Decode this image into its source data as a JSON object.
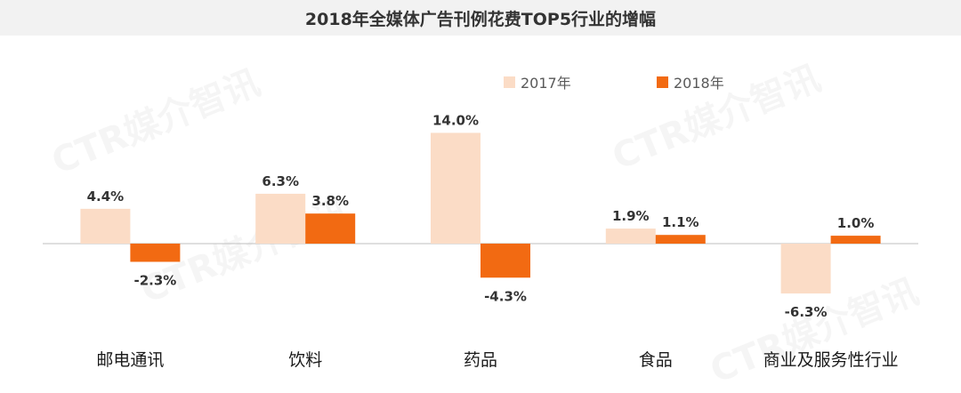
{
  "title": "2018年全媒体广告刊例花费TOP5行业的增幅",
  "watermark": "CTR媒介智讯",
  "colors": {
    "s2017": "#fbdcc6",
    "s2018": "#f26a12",
    "axis": "#bfbfbf",
    "text": "#333333"
  },
  "chart_data": {
    "type": "bar",
    "title": "2018年全媒体广告刊例花费TOP5行业的增幅",
    "xlabel": "",
    "ylabel": "",
    "categories": [
      "邮电通讯",
      "饮料",
      "药品",
      "食品",
      "商业及服务性行业"
    ],
    "series": [
      {
        "name": "2017年",
        "values": [
          4.4,
          6.3,
          14.0,
          1.9,
          -6.3
        ],
        "labels": [
          "4.4%",
          "6.3%",
          "14.0%",
          "1.9%",
          "-6.3%"
        ]
      },
      {
        "name": "2018年",
        "values": [
          -2.3,
          3.8,
          -4.3,
          1.1,
          1.0
        ],
        "labels": [
          "-2.3%",
          "3.8%",
          "-4.3%",
          "1.1%",
          "1.0%"
        ]
      }
    ],
    "value_format": "percent",
    "legend_position": "top-center",
    "grid": false
  }
}
